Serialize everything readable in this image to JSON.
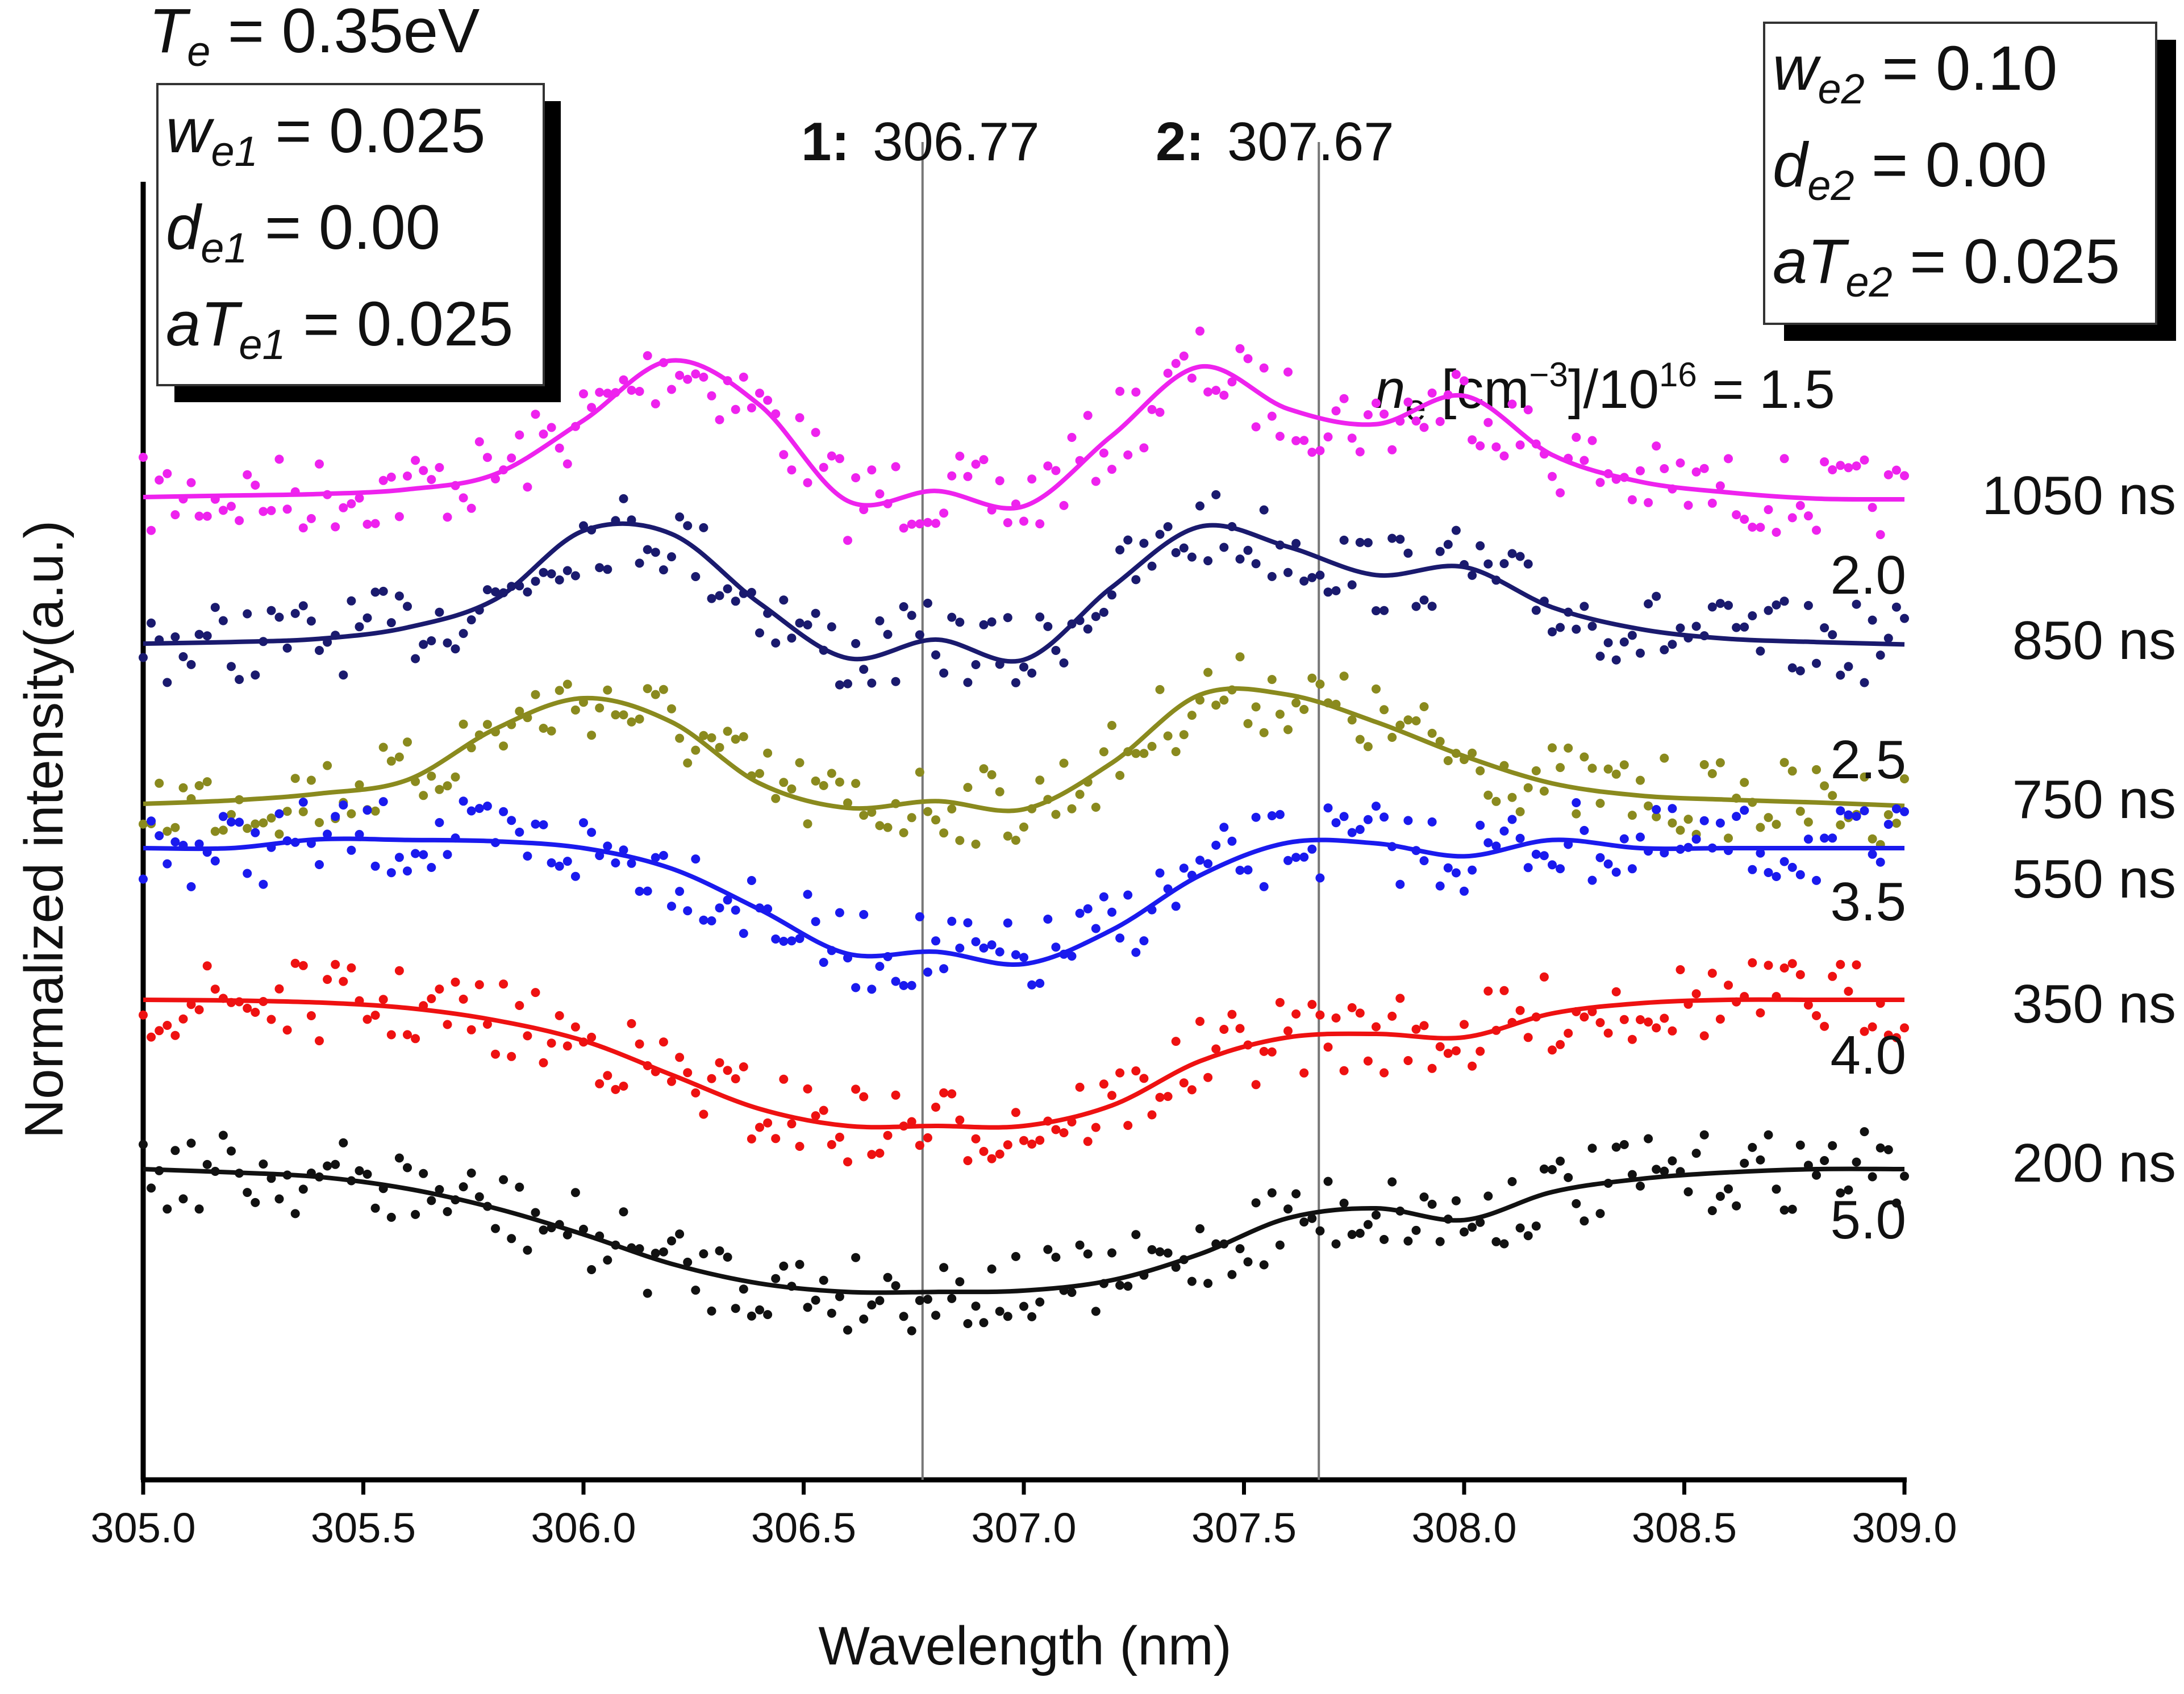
{
  "chart_data": {
    "type": "line",
    "xlabel": "Wavelength (nm)",
    "ylabel": "Normalized intensity(a.u.)",
    "xlim": [
      305.0,
      309.0
    ],
    "x_ticks": [
      "305.0",
      "305.5",
      "306.0",
      "306.5",
      "307.0",
      "307.5",
      "308.0",
      "308.5",
      "309.0"
    ],
    "y_ticks_shown": false,
    "ref_lines": [
      {
        "id": "1",
        "x": 306.77,
        "label_num": "1:",
        "label_val": "306.77"
      },
      {
        "id": "2",
        "x": 307.67,
        "label_num": "2:",
        "label_val": "307.67"
      }
    ],
    "ne_label": {
      "n": "n",
      "n_sub": "e",
      "mid": " [cm",
      "sup1": "−3",
      "mid2": "]/10",
      "sup2": "16",
      "eq": " = 1.5"
    },
    "left_box": {
      "te": {
        "main": "T",
        "sub": "e",
        "rest": " = 0.35eV"
      },
      "lines": [
        {
          "main": "w",
          "sub": "e1",
          "rest": " = 0.025"
        },
        {
          "main": "d",
          "sub": "e1",
          "rest": " = 0.00"
        },
        {
          "main": "aT",
          "sub": "e1",
          "rest": " = 0.025"
        }
      ]
    },
    "right_box": {
      "lines": [
        {
          "main": "w",
          "sub": "e2",
          "rest": " = 0.10"
        },
        {
          "main": "d",
          "sub": "e2",
          "rest": " = 0.00"
        },
        {
          "main": "aT",
          "sub": "e2",
          "rest": " = 0.025"
        }
      ]
    },
    "series": [
      {
        "name": "1050 ns",
        "ne": "1.5",
        "color": "#ee22ee",
        "baseline": 1.0,
        "fit_y": [
          0.0,
          0.02,
          0.04,
          0.1,
          0.3,
          1.0,
          1.78,
          1.2,
          -0.05,
          0.08,
          -0.12,
          0.8,
          1.7,
          1.15,
          0.95,
          1.32,
          0.55,
          0.2,
          0.06,
          -0.02,
          -0.03
        ]
      },
      {
        "name": "850 ns",
        "ne": "2.0",
        "color": "#1a1a6e",
        "baseline": 0.0,
        "fit_y": [
          0.0,
          0.02,
          0.06,
          0.2,
          0.55,
          1.4,
          1.36,
          0.5,
          -0.18,
          0.05,
          -0.2,
          0.7,
          1.45,
          1.2,
          0.85,
          0.95,
          0.45,
          0.18,
          0.06,
          0.02,
          -0.01
        ]
      },
      {
        "name": "750 ns",
        "ne": "2.5",
        "color": "#8a8a1e",
        "baseline": 0.0,
        "fit_y": [
          0.0,
          0.05,
          0.15,
          0.35,
          1.1,
          1.55,
          1.2,
          0.3,
          -0.06,
          0.04,
          -0.08,
          0.6,
          1.6,
          1.6,
          1.2,
          0.7,
          0.3,
          0.12,
          0.06,
          0.02,
          -0.03
        ]
      },
      {
        "name": "550 ns",
        "ne": "3.5",
        "color": "#1a1aee",
        "baseline": 0.0,
        "fit_y": [
          0.0,
          0.0,
          0.13,
          0.12,
          0.1,
          0.0,
          -0.3,
          -0.9,
          -1.55,
          -1.52,
          -1.7,
          -1.2,
          -0.4,
          0.08,
          0.07,
          -0.12,
          0.12,
          0.0,
          0.0,
          0.0,
          0.0
        ]
      },
      {
        "name": "350 ns",
        "ne": "4.0",
        "color": "#ee1111",
        "baseline": 0.0,
        "fit_y": [
          0.0,
          -0.01,
          -0.04,
          -0.12,
          -0.3,
          -0.6,
          -1.1,
          -1.6,
          -1.85,
          -1.85,
          -1.85,
          -1.55,
          -0.9,
          -0.55,
          -0.5,
          -0.55,
          -0.2,
          -0.05,
          0.0,
          0.0,
          0.0
        ]
      },
      {
        "name": "200 ns",
        "ne": "5.0",
        "color": "#111111",
        "baseline": 0.0,
        "fit_y": [
          0.0,
          -0.05,
          -0.12,
          -0.3,
          -0.6,
          -1.0,
          -1.45,
          -1.75,
          -1.88,
          -1.88,
          -1.86,
          -1.7,
          -1.3,
          -0.75,
          -0.6,
          -0.78,
          -0.35,
          -0.15,
          -0.05,
          0.0,
          0.0
        ]
      }
    ]
  }
}
